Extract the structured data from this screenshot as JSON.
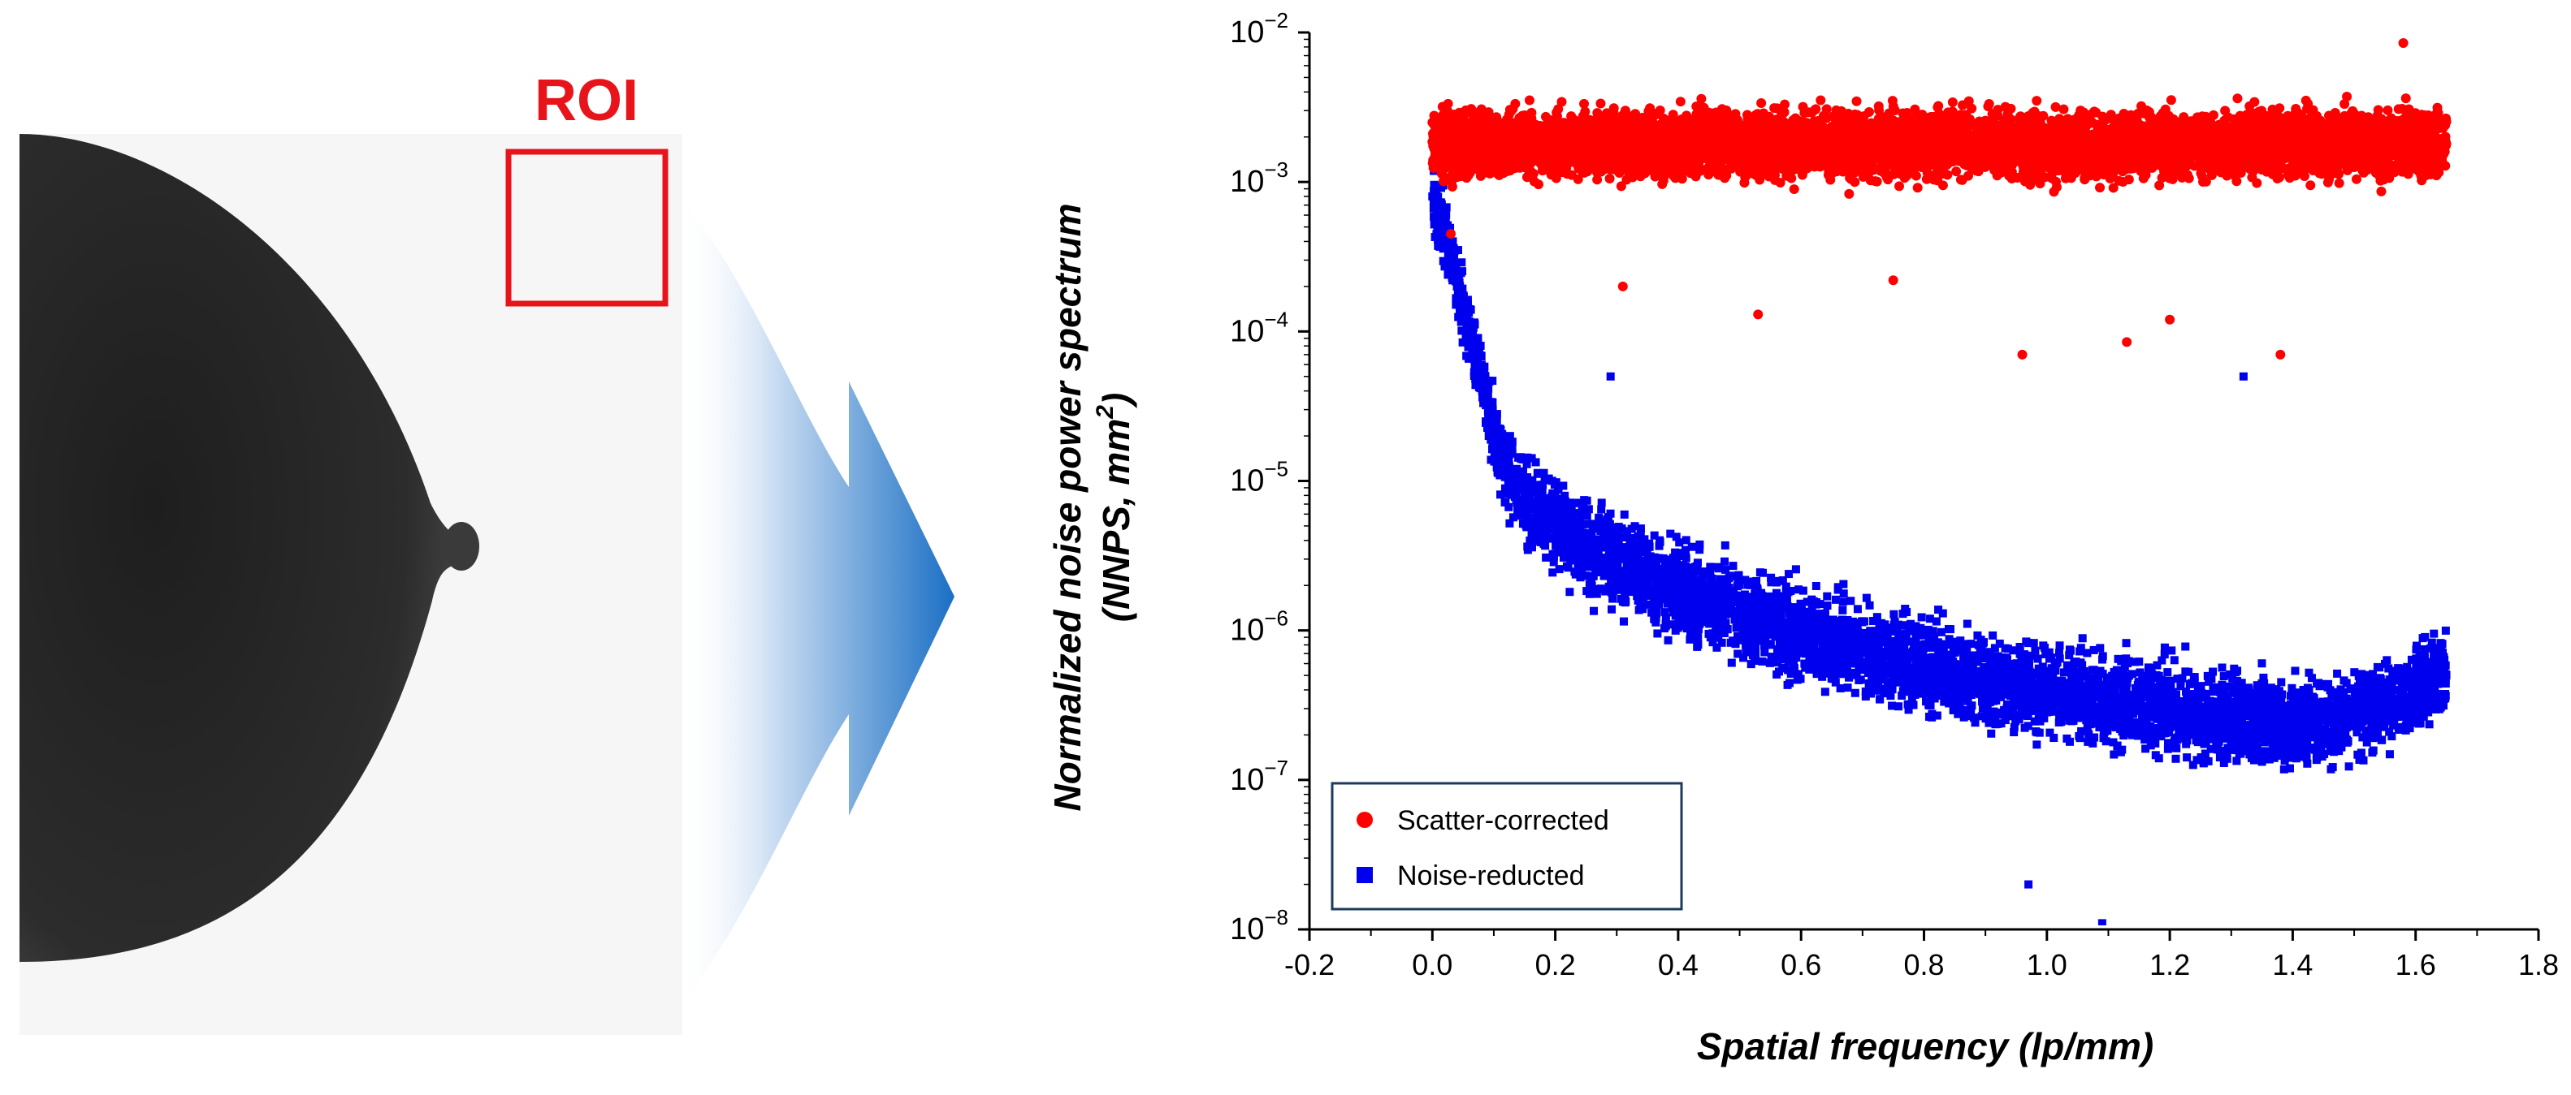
{
  "colors": {
    "scatter_corrected": "#ff0000",
    "noise_reducted": "#0000ee",
    "roi_box": "#e8141c",
    "arrow": "#1a6fc4",
    "tissue": "#2b2b2b",
    "background_film": "#f6f6f6"
  },
  "icons": {
    "arrow": "arrow-right-icon"
  },
  "image_panel": {
    "roi_label": "ROI"
  },
  "chart_data": {
    "type": "scatter",
    "title": "",
    "xlabel": "Spatial frequency (lp/mm)",
    "ylabel_line1": "Normalized noise power spectrum",
    "ylabel_line2_prefix": "(NNPS, mm",
    "ylabel_line2_sup": "2",
    "ylabel_line2_suffix": ")",
    "xlim": [
      -0.2,
      1.8
    ],
    "x_ticks": [
      -0.2,
      0.0,
      0.2,
      0.4,
      0.6,
      0.8,
      1.0,
      1.2,
      1.4,
      1.6,
      1.8
    ],
    "x_tick_labels": [
      "-0.2",
      "0.0",
      "0.2",
      "0.4",
      "0.6",
      "0.8",
      "1.0",
      "1.2",
      "1.4",
      "1.6",
      "1.8"
    ],
    "y_scale": "log",
    "ylim": [
      1e-08,
      0.01
    ],
    "y_ticks": [
      {
        "base": "10",
        "exp": "−8",
        "value": 1e-08
      },
      {
        "base": "10",
        "exp": "−7",
        "value": 1e-07
      },
      {
        "base": "10",
        "exp": "−6",
        "value": 1e-06
      },
      {
        "base": "10",
        "exp": "−5",
        "value": 1e-05
      },
      {
        "base": "10",
        "exp": "−4",
        "value": 0.0001
      },
      {
        "base": "10",
        "exp": "−3",
        "value": 0.001
      },
      {
        "base": "10",
        "exp": "−2",
        "value": 0.01
      }
    ],
    "legend_position": "bottom-left",
    "series": [
      {
        "name": "Scatter-corrected",
        "marker": "circle",
        "color": "#ff0000",
        "x": [
          0.0,
          0.02,
          0.04,
          0.06,
          0.08,
          0.1,
          0.15,
          0.2,
          0.25,
          0.3,
          0.35,
          0.4,
          0.45,
          0.5,
          0.55,
          0.6,
          0.65,
          0.7,
          0.75,
          0.8,
          0.85,
          0.9,
          0.95,
          1.0,
          1.05,
          1.1,
          1.15,
          1.2,
          1.25,
          1.3,
          1.35,
          1.4,
          1.45,
          1.5,
          1.55,
          1.6,
          1.65,
          0.03,
          0.53,
          0.96,
          1.13,
          1.38,
          1.58,
          1.2,
          0.75,
          0.31
        ],
        "y": [
          0.0025,
          0.0021,
          0.002,
          0.0019,
          0.0018,
          0.0018,
          0.0018,
          0.0018,
          0.0018,
          0.0018,
          0.0018,
          0.0018,
          0.0018,
          0.0018,
          0.0018,
          0.0018,
          0.0018,
          0.0018,
          0.0018,
          0.0018,
          0.0018,
          0.0018,
          0.0018,
          0.0018,
          0.0018,
          0.0018,
          0.0018,
          0.0018,
          0.0018,
          0.0018,
          0.0018,
          0.0018,
          0.0018,
          0.0018,
          0.0018,
          0.0018,
          0.0018,
          0.00045,
          0.00013,
          7e-05,
          8.5e-05,
          7e-05,
          0.0085,
          0.00012,
          0.00022,
          0.0002
        ]
      },
      {
        "name": "Noise-reducted",
        "marker": "square",
        "color": "#0000ee",
        "x": [
          0.0,
          0.02,
          0.04,
          0.06,
          0.08,
          0.1,
          0.12,
          0.15,
          0.2,
          0.25,
          0.3,
          0.35,
          0.4,
          0.45,
          0.5,
          0.55,
          0.6,
          0.65,
          0.7,
          0.75,
          0.8,
          0.85,
          0.9,
          0.95,
          1.0,
          1.05,
          1.1,
          1.15,
          1.2,
          1.25,
          1.3,
          1.35,
          1.4,
          1.45,
          1.5,
          1.55,
          1.6,
          1.65,
          1.09,
          0.97,
          1.32,
          0.29
        ],
        "y": [
          0.0008,
          0.0005,
          0.0002,
          0.0001,
          5e-05,
          2e-05,
          1.2e-05,
          8e-06,
          5e-06,
          3.5e-06,
          2.8e-06,
          2.3e-06,
          1.9e-06,
          1.6e-06,
          1.3e-06,
          1.1e-06,
          9.5e-07,
          8.5e-07,
          7.5e-07,
          6.5e-07,
          5.8e-07,
          5.2e-07,
          4.7e-07,
          4.3e-07,
          4e-07,
          3.7e-07,
          3.4e-07,
          3.2e-07,
          3e-07,
          2.8e-07,
          2.6e-07,
          2.5e-07,
          2.4e-07,
          2.5e-07,
          2.8e-07,
          3.3e-07,
          4e-07,
          5e-07,
          1.1e-08,
          2e-08,
          5e-05,
          5e-05
        ]
      }
    ]
  }
}
